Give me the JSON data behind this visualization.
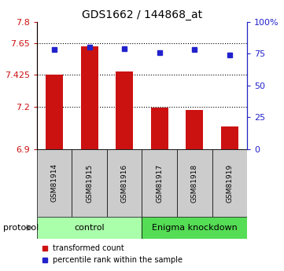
{
  "title": "GDS1662 / 144868_at",
  "samples": [
    "GSM81914",
    "GSM81915",
    "GSM81916",
    "GSM81917",
    "GSM81918",
    "GSM81919"
  ],
  "bar_values": [
    7.425,
    7.625,
    7.45,
    7.195,
    7.175,
    7.06
  ],
  "dot_values": [
    78,
    80,
    79,
    76,
    78,
    74
  ],
  "bar_color": "#cc1111",
  "dot_color": "#2222cc",
  "ylim_left": [
    6.9,
    7.8
  ],
  "ylim_right": [
    0,
    100
  ],
  "yticks_left": [
    6.9,
    7.2,
    7.425,
    7.65,
    7.8
  ],
  "ytick_labels_left": [
    "6.9",
    "7.2",
    "7.425",
    "7.65",
    "7.8"
  ],
  "yticks_right": [
    0,
    25,
    50,
    75,
    100
  ],
  "ytick_labels_right": [
    "0",
    "25",
    "50",
    "75",
    "100%"
  ],
  "hlines": [
    7.65,
    7.425,
    7.2
  ],
  "groups": [
    {
      "label": "control",
      "start": 0,
      "end": 3,
      "color": "#aaffaa"
    },
    {
      "label": "Enigma knockdown",
      "start": 3,
      "end": 6,
      "color": "#55dd55"
    }
  ],
  "protocol_label": "protocol",
  "legend_bar_label": "transformed count",
  "legend_dot_label": "percentile rank within the sample",
  "background_color": "#ffffff",
  "plot_bg_color": "#ffffff",
  "sample_box_color": "#cccccc"
}
